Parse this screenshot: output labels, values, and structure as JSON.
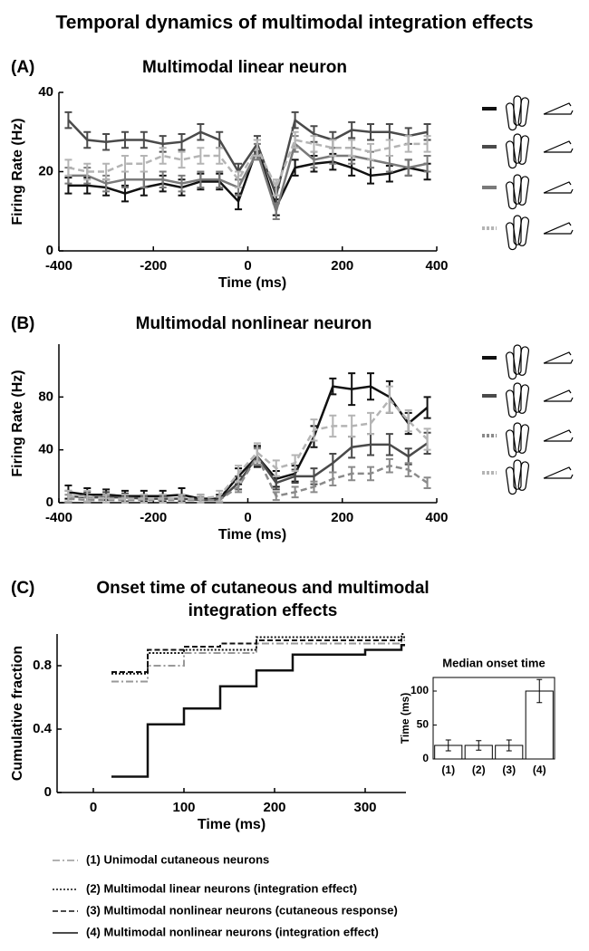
{
  "title": "Temporal dynamics of multimodal integration effects",
  "chart_data": [
    {
      "type": "line",
      "panel": "(A)",
      "title": "Multimodal linear neuron",
      "xlabel": "Time (ms)",
      "ylabel": "Firing Rate (Hz)",
      "x": [
        -380,
        -340,
        -300,
        -260,
        -220,
        -180,
        -140,
        -100,
        -60,
        -20,
        20,
        60,
        100,
        140,
        180,
        220,
        260,
        300,
        340,
        380
      ],
      "xlim": [
        -400,
        400
      ],
      "xticks": [
        -400,
        -200,
        0,
        200,
        400
      ],
      "ylim": [
        0,
        40
      ],
      "yticks": [
        0,
        20,
        40
      ],
      "legend": "right",
      "series": [
        {
          "color": "#111111",
          "dash": "none",
          "values": [
            16.5,
            16.5,
            16,
            14.5,
            16,
            17,
            16,
            17.5,
            17.5,
            12.5,
            26,
            11,
            21,
            22,
            22.5,
            21,
            19,
            19.5,
            21,
            20
          ],
          "errors": [
            2,
            2,
            2,
            2,
            2,
            2,
            2,
            2,
            2,
            2,
            2,
            2,
            2,
            2,
            2,
            2,
            2,
            2,
            2,
            2
          ]
        },
        {
          "color": "#4a4a4a",
          "dash": "none",
          "values": [
            33,
            28,
            27.5,
            28,
            28,
            27,
            27.5,
            30,
            28,
            20,
            27,
            14,
            33,
            29.5,
            28,
            30.5,
            30,
            30,
            29,
            30
          ],
          "errors": [
            2,
            2,
            2,
            2,
            2,
            2,
            2,
            2,
            2,
            2,
            2,
            2,
            2,
            2,
            2,
            2,
            2,
            2,
            2,
            2
          ]
        },
        {
          "color": "#7a7a7a",
          "dash": "none",
          "values": [
            19,
            19,
            17,
            18,
            18,
            18,
            17,
            18,
            18,
            16,
            25,
            10,
            27,
            23,
            24,
            24,
            23,
            22,
            21,
            22
          ],
          "errors": [
            2,
            2,
            2,
            2,
            2,
            2,
            2,
            2,
            2,
            2,
            2,
            2,
            2,
            2,
            2,
            2,
            2,
            2,
            2,
            2
          ]
        },
        {
          "color": "#b4b4b4",
          "dash": "7,4",
          "values": [
            21,
            20,
            20,
            22,
            22,
            24,
            23,
            24,
            24,
            18,
            26,
            16,
            28,
            27,
            26,
            26,
            25,
            26,
            27,
            27
          ],
          "errors": [
            2,
            2,
            2,
            2,
            2,
            2,
            2,
            2,
            2,
            2,
            2,
            2,
            2,
            2,
            2,
            2,
            2,
            2,
            2,
            2
          ]
        }
      ]
    },
    {
      "type": "line",
      "panel": "(B)",
      "title": "Multimodal nonlinear neuron",
      "xlabel": "Time (ms)",
      "ylabel": "Firing Rate (Hz)",
      "x": [
        -380,
        -340,
        -300,
        -260,
        -220,
        -180,
        -140,
        -100,
        -60,
        -20,
        20,
        60,
        100,
        140,
        180,
        220,
        260,
        300,
        340,
        380
      ],
      "xlim": [
        -400,
        400
      ],
      "xticks": [
        -400,
        -200,
        0,
        200,
        400
      ],
      "ylim": [
        0,
        120
      ],
      "yticks": [
        0,
        40,
        80
      ],
      "legend": "right",
      "series": [
        {
          "color": "#111111",
          "dash": "none",
          "values": [
            8,
            6,
            6,
            5,
            5,
            5,
            6,
            3,
            3,
            20,
            35,
            18,
            22,
            50,
            88,
            86,
            88,
            80,
            60,
            72
          ],
          "errors": [
            5,
            5,
            4,
            4,
            4,
            4,
            5,
            3,
            3,
            6,
            8,
            6,
            6,
            8,
            6,
            12,
            10,
            12,
            8,
            8
          ]
        },
        {
          "color": "#4a4a4a",
          "dash": "none",
          "values": [
            5,
            4,
            4,
            4,
            3,
            3,
            3,
            2,
            2,
            15,
            35,
            15,
            20,
            20,
            30,
            42,
            44,
            44,
            35,
            45
          ],
          "errors": [
            4,
            4,
            4,
            3,
            3,
            3,
            3,
            2,
            2,
            5,
            7,
            5,
            5,
            6,
            7,
            8,
            8,
            8,
            6,
            8
          ]
        },
        {
          "color": "#8a8a8a",
          "dash": "7,4",
          "values": [
            3,
            2,
            2,
            2,
            2,
            2,
            2,
            2,
            2,
            12,
            35,
            5,
            8,
            12,
            18,
            22,
            22,
            28,
            25,
            15
          ],
          "errors": [
            3,
            2,
            2,
            2,
            2,
            2,
            2,
            2,
            2,
            4,
            6,
            3,
            4,
            4,
            5,
            5,
            5,
            5,
            5,
            4
          ]
        },
        {
          "color": "#b4b4b4",
          "dash": "7,4",
          "values": [
            5,
            5,
            3,
            3,
            3,
            3,
            3,
            3,
            5,
            22,
            38,
            26,
            30,
            55,
            58,
            58,
            60,
            78,
            62,
            48
          ],
          "errors": [
            4,
            4,
            3,
            3,
            3,
            3,
            3,
            3,
            4,
            6,
            7,
            6,
            6,
            8,
            8,
            8,
            8,
            10,
            8,
            8
          ]
        }
      ]
    },
    {
      "type": "step",
      "panel": "(C)",
      "title": [
        "Onset time of cutaneous and multimodal",
        "integration effects"
      ],
      "xlabel": "Time (ms)",
      "ylabel": "Cumulative fraction",
      "xlim": [
        -40,
        345
      ],
      "xticks": [
        0,
        100,
        200,
        300
      ],
      "ylim": [
        0,
        1
      ],
      "yticks": [
        0,
        0.4,
        0.8
      ],
      "legend": "bottom",
      "series": [
        {
          "name": "(1) Unimodal cutaneous neurons",
          "color": "#999999",
          "dash": "8,3,2,3",
          "x": [
            20,
            60,
            100,
            180,
            340
          ],
          "values": [
            0.7,
            0.8,
            0.88,
            0.94,
            0.96
          ]
        },
        {
          "name": "(2) Multimodal linear neurons (integration effect)",
          "color": "#111111",
          "dash": "2,2",
          "x": [
            20,
            60,
            100,
            180,
            340
          ],
          "values": [
            0.75,
            0.88,
            0.9,
            0.98,
            1
          ]
        },
        {
          "name": "(3) Multimodal nonlinear neurons (cutaneous response)",
          "color": "#111111",
          "dash": "6,3",
          "x": [
            20,
            60,
            100,
            140,
            180,
            340
          ],
          "values": [
            0.76,
            0.9,
            0.92,
            0.94,
            0.96,
            0.98
          ]
        },
        {
          "name": "(4) Multimodal nonlinear neurons (integration effect)",
          "color": "#111111",
          "dash": "none",
          "x": [
            20,
            60,
            100,
            140,
            180,
            220,
            300,
            340
          ],
          "values": [
            0.1,
            0.43,
            0.53,
            0.67,
            0.77,
            0.87,
            0.9,
            0.93
          ]
        }
      ]
    },
    {
      "type": "bar",
      "title": "Median onset time",
      "ylabel": "Time (ms)",
      "categories": [
        "(1)",
        "(2)",
        "(3)",
        "(4)"
      ],
      "values": [
        20,
        20,
        20,
        100
      ],
      "errors": [
        8,
        7,
        8,
        17
      ],
      "ylim": [
        0,
        120
      ],
      "yticks": [
        0,
        50,
        100
      ],
      "color": "#ffffff"
    }
  ]
}
